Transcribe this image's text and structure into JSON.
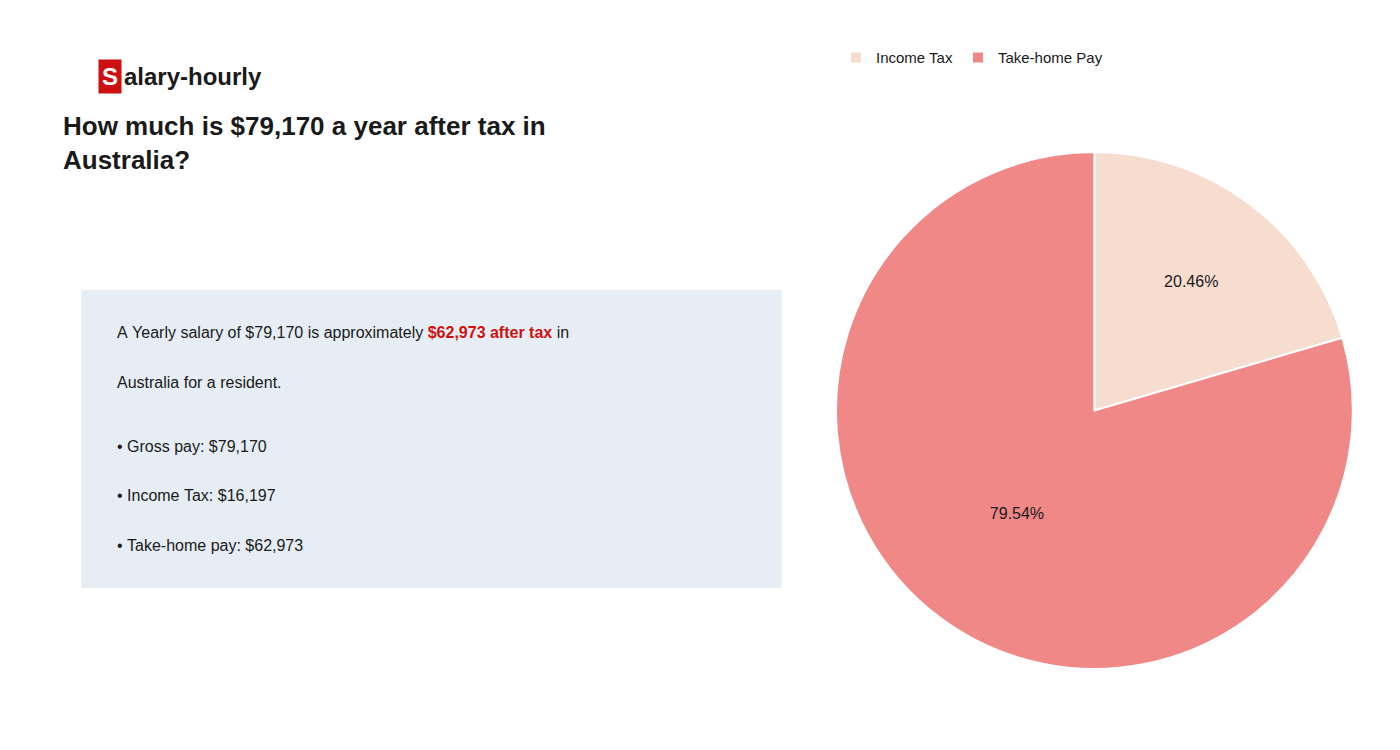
{
  "chart_data": {
    "type": "pie",
    "title": [
      "How much is $79,170 a year after tax in",
      "Australia?"
    ],
    "categories": [
      "Income Tax",
      "Take-home Pay"
    ],
    "values": [
      20.46,
      79.54
    ],
    "value_labels": [
      "20.46%",
      "79.54%"
    ],
    "colors": [
      "#f7ddd0",
      "#f08888"
    ],
    "data_labels": true,
    "legend": "upper left",
    "annotations": [
      [
        {
          "text": "S",
          "color": "#cc1111"
        },
        {
          "text": "alary-hourly"
        }
      ],
      [
        {
          "text": "A Yearly salary of $79,170 is approximately "
        },
        {
          "text": "$62,973 after tax",
          "color": "#cc1111"
        },
        {
          "text": " in"
        }
      ],
      [
        {
          "text": "Australia for a resident."
        }
      ],
      [
        {
          "text": "• Gross pay: $79,170"
        }
      ],
      [
        {
          "text": "• Income Tax: $16,197"
        }
      ],
      [
        {
          "text": "• Take-home pay: $62,973"
        }
      ]
    ]
  }
}
